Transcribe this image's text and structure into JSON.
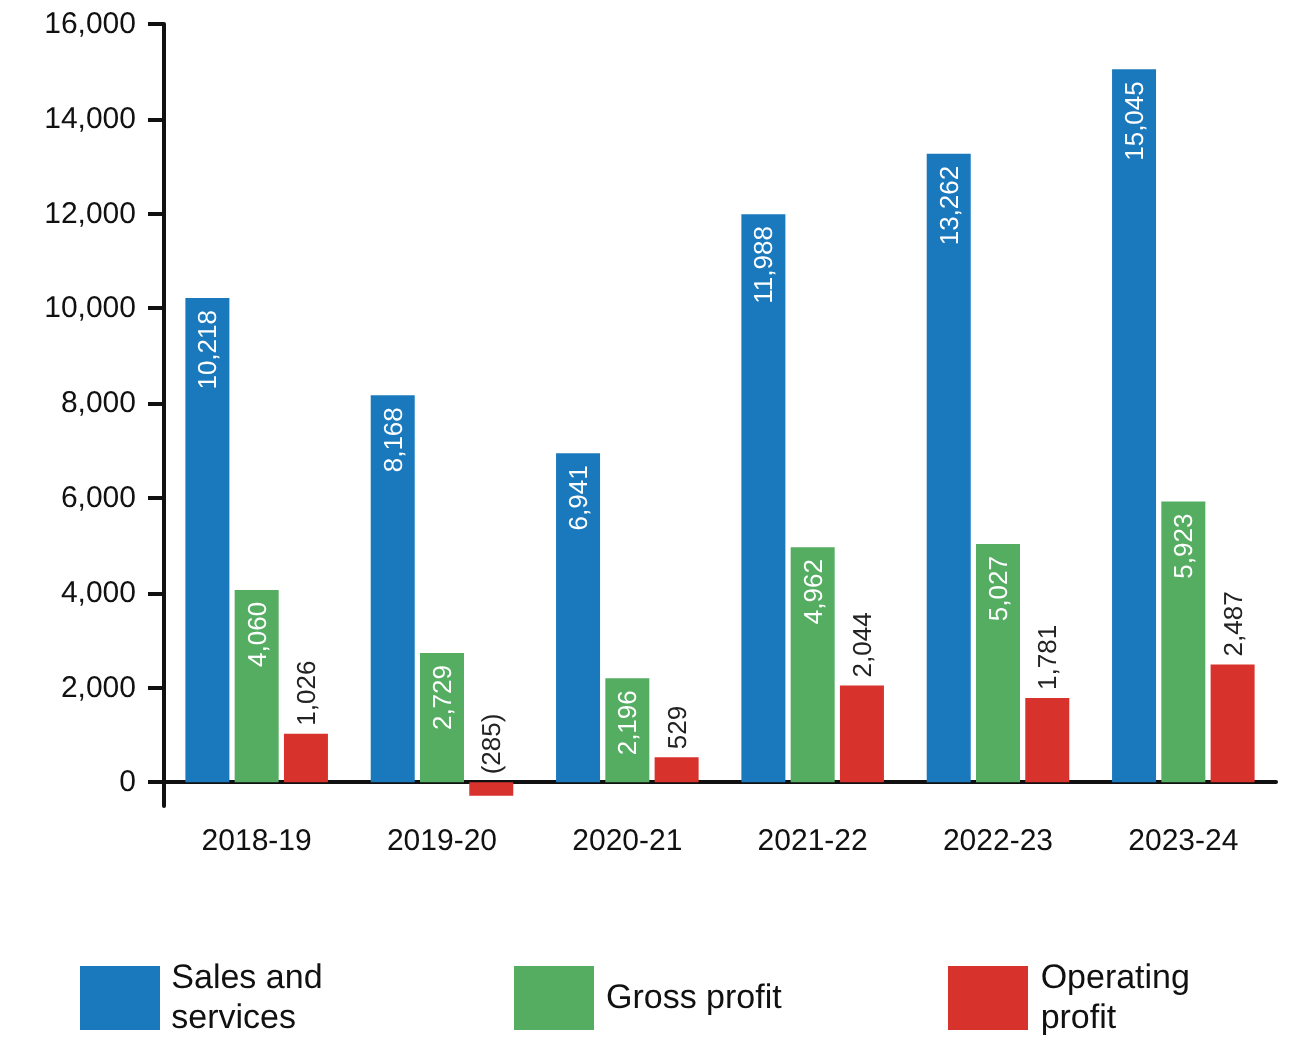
{
  "chart_data": {
    "type": "bar",
    "categories": [
      "2018-19",
      "2019-20",
      "2020-21",
      "2021-22",
      "2022-23",
      "2023-24"
    ],
    "series": [
      {
        "name": "Sales and services",
        "color": "#1a78bd",
        "values": [
          10218,
          8168,
          6941,
          11988,
          13262,
          15045
        ],
        "value_labels": [
          "10,218",
          "8,168",
          "6,941",
          "11,988",
          "13,262",
          "15,045"
        ]
      },
      {
        "name": "Gross profit",
        "color": "#55ad62",
        "values": [
          4060,
          2729,
          2196,
          4962,
          5027,
          5923
        ],
        "value_labels": [
          "4,060",
          "2,729",
          "2,196",
          "4,962",
          "5,027",
          "5,923"
        ]
      },
      {
        "name": "Operating profit",
        "color": "#d8322c",
        "values": [
          1026,
          -285,
          529,
          2044,
          1781,
          2487
        ],
        "value_labels": [
          "1,026",
          "(285)",
          "529",
          "2,044",
          "1,781",
          "2,487"
        ]
      }
    ],
    "ylim": [
      -500,
      16000
    ],
    "yticks": [
      {
        "value": 0,
        "label": "0"
      },
      {
        "value": 2000,
        "label": "2,000"
      },
      {
        "value": 4000,
        "label": "4,000"
      },
      {
        "value": 6000,
        "label": "6,000"
      },
      {
        "value": 8000,
        "label": "8,000"
      },
      {
        "value": 10000,
        "label": "10,000"
      },
      {
        "value": 12000,
        "label": "12,000"
      },
      {
        "value": 14000,
        "label": "14,000"
      },
      {
        "value": 16000,
        "label": "16,000"
      }
    ],
    "grid": false,
    "legend": "bottom"
  }
}
